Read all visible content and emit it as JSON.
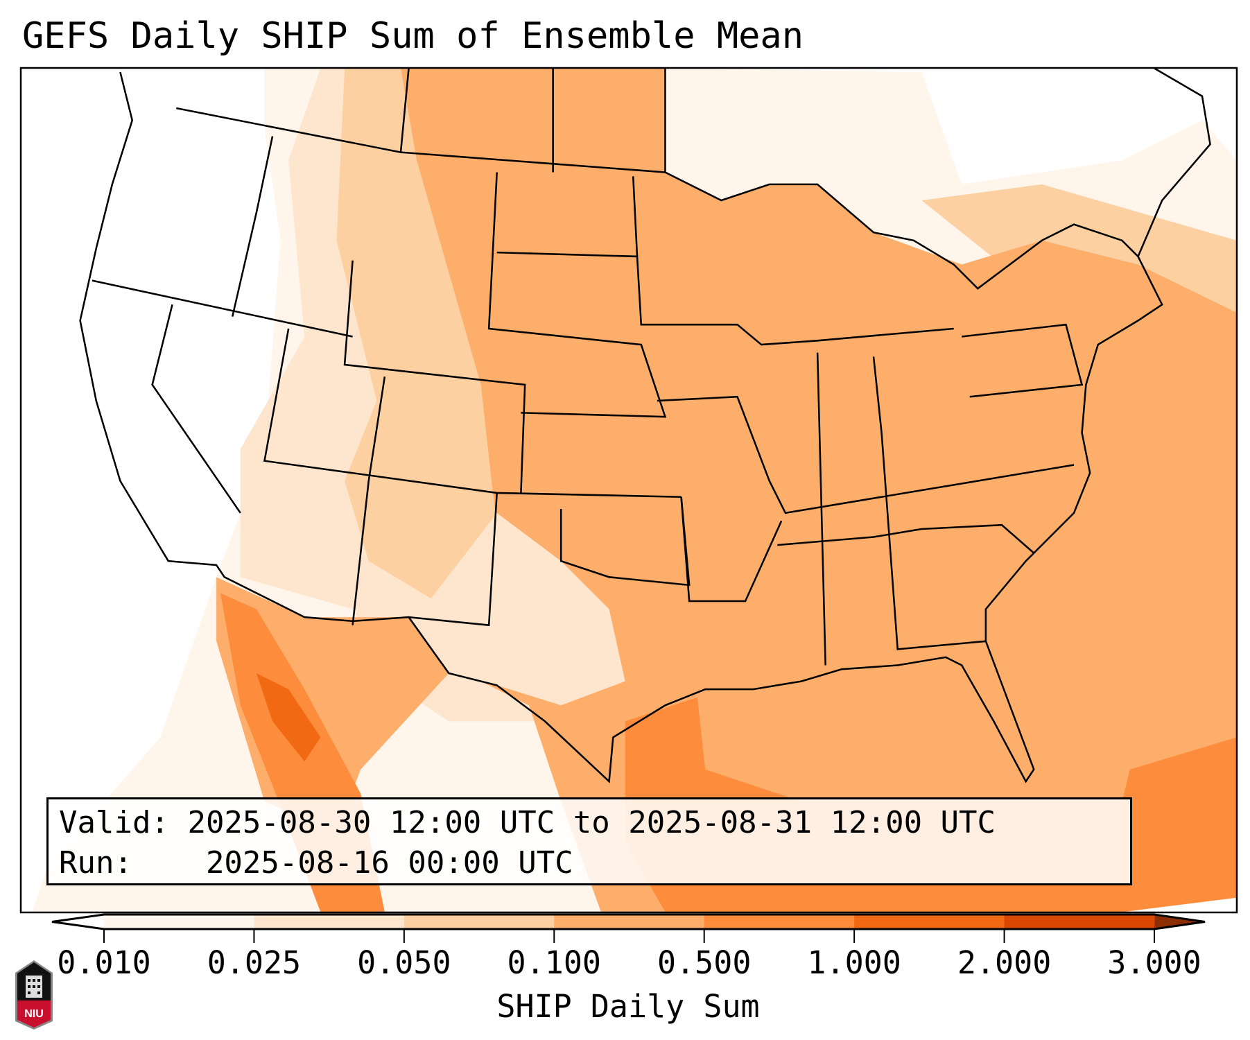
{
  "title": "GEFS Daily SHIP Sum of Ensemble Mean",
  "info_box": {
    "valid_label": "Valid:",
    "valid_value": "2025-08-30 12:00 UTC to 2025-08-31 12:00 UTC",
    "run_label": "Run:",
    "run_value": "2025-08-16 00:00 UTC"
  },
  "colorbar": {
    "label": "SHIP Daily Sum",
    "ticks": [
      "0.010",
      "0.025",
      "0.050",
      "0.100",
      "0.500",
      "1.000",
      "2.000",
      "3.000"
    ],
    "colors": [
      "#fff5eb",
      "#fee6ce",
      "#fdd0a2",
      "#fdae6b",
      "#fd8d3c",
      "#f16913",
      "#d94801"
    ],
    "under_color": "#ffffff",
    "over_color": "#8c2d04"
  },
  "logo": {
    "text": "NIU"
  }
}
